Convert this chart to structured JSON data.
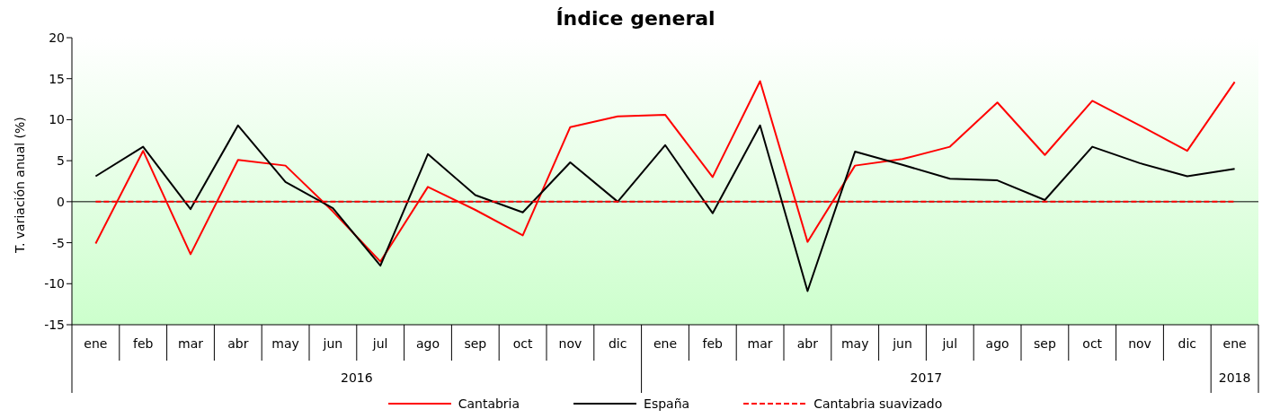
{
  "chart_data": {
    "type": "line",
    "title": "Índice general",
    "ylabel": "T. variación anual (%)",
    "categories": [
      "ene",
      "feb",
      "mar",
      "abr",
      "may",
      "jun",
      "jul",
      "ago",
      "sep",
      "oct",
      "nov",
      "dic",
      "ene",
      "feb",
      "mar",
      "abr",
      "may",
      "jun",
      "jul",
      "ago",
      "sep",
      "oct",
      "nov",
      "dic",
      "ene"
    ],
    "series": [
      {
        "name": "Cantabria",
        "color": "#ff0000",
        "line_style": "solid",
        "values": [
          -5.1,
          6.2,
          -6.4,
          5.1,
          4.4,
          -1.2,
          -7.3,
          1.8,
          -1.0,
          -4.1,
          9.1,
          10.4,
          10.6,
          3.0,
          14.7,
          -4.9,
          4.4,
          5.2,
          6.7,
          12.1,
          5.7,
          12.3,
          9.3,
          6.2,
          14.6
        ]
      },
      {
        "name": "España",
        "color": "#000000",
        "line_style": "solid",
        "values": [
          3.1,
          6.7,
          -0.9,
          9.3,
          2.4,
          -0.8,
          -7.8,
          5.8,
          0.8,
          -1.3,
          4.8,
          0.0,
          6.9,
          -1.4,
          9.3,
          -10.9,
          6.1,
          4.5,
          2.8,
          2.6,
          0.2,
          6.7,
          4.7,
          3.1,
          4.0
        ]
      },
      {
        "name": "Cantabria suavizado",
        "color": "#ff0000",
        "line_style": "dashed",
        "values": [
          0,
          0,
          0,
          0,
          0,
          0,
          0,
          0,
          0,
          0,
          0,
          0,
          0,
          0,
          0,
          0,
          0,
          0,
          0,
          0,
          0,
          0,
          0,
          0,
          0
        ]
      }
    ],
    "ylim": [
      -15,
      20
    ],
    "yticks": [
      -15,
      -10,
      -5,
      0,
      5,
      10,
      15,
      20
    ],
    "ref_lines": [
      {
        "axis": "y",
        "value": 0,
        "color": "#000000"
      }
    ],
    "annotations": [
      "2016",
      "2017",
      "2018"
    ],
    "grid": false,
    "legend": "bottom",
    "marker": "none"
  }
}
